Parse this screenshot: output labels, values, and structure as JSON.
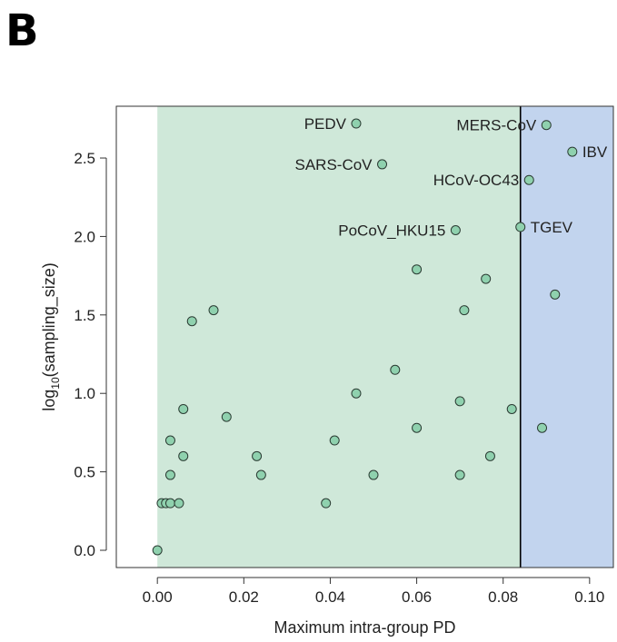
{
  "panel_label": "B",
  "colors": {
    "green_region": "#cfe8d9",
    "blue_region": "#c2d4ee",
    "point_fill": "#8fd1ae",
    "point_stroke": "#2b3b33",
    "threshold_line": "#000000"
  },
  "chart_data": {
    "type": "scatter",
    "xlabel": "Maximum intra-group PD",
    "ylabel": {
      "base": "log",
      "subscript": "10",
      "rest": "(sampling_size)"
    },
    "xlim": [
      -0.0095,
      0.1055
    ],
    "ylim": [
      -0.11,
      2.83
    ],
    "x_ticks": [
      0.0,
      0.02,
      0.04,
      0.06,
      0.08,
      0.1
    ],
    "x_tick_labels": [
      "0.00",
      "0.02",
      "0.04",
      "0.06",
      "0.08",
      "0.10"
    ],
    "y_ticks": [
      0.0,
      0.5,
      1.0,
      1.5,
      2.0,
      2.5
    ],
    "y_tick_labels": [
      "0.0",
      "0.5",
      "1.0",
      "1.5",
      "2.0",
      "2.5"
    ],
    "grid": false,
    "regions": [
      {
        "from": 0.0,
        "to": 0.084,
        "color": "green"
      },
      {
        "from": 0.084,
        "to": 0.1055,
        "color": "blue"
      }
    ],
    "threshold_x": 0.084,
    "labeled_points": [
      {
        "label": "PEDV",
        "x": 0.046,
        "y": 2.72,
        "side": "left"
      },
      {
        "label": "MERS-CoV",
        "x": 0.09,
        "y": 2.71,
        "side": "left"
      },
      {
        "label": "IBV",
        "x": 0.096,
        "y": 2.54,
        "side": "right"
      },
      {
        "label": "SARS-CoV",
        "x": 0.052,
        "y": 2.46,
        "side": "left"
      },
      {
        "label": "HCoV-OC43",
        "x": 0.086,
        "y": 2.36,
        "side": "left"
      },
      {
        "label": "PoCoV_HKU15",
        "x": 0.069,
        "y": 2.04,
        "side": "left"
      },
      {
        "label": "TGEV",
        "x": 0.084,
        "y": 2.06,
        "side": "right"
      }
    ],
    "points": [
      [
        0.0,
        0.0
      ],
      [
        0.001,
        0.3
      ],
      [
        0.002,
        0.3
      ],
      [
        0.003,
        0.3
      ],
      [
        0.005,
        0.3
      ],
      [
        0.003,
        0.48
      ],
      [
        0.003,
        0.7
      ],
      [
        0.006,
        0.6
      ],
      [
        0.006,
        0.9
      ],
      [
        0.008,
        1.46
      ],
      [
        0.013,
        1.53
      ],
      [
        0.016,
        0.85
      ],
      [
        0.023,
        0.6
      ],
      [
        0.024,
        0.48
      ],
      [
        0.039,
        0.3
      ],
      [
        0.041,
        0.7
      ],
      [
        0.046,
        1.0
      ],
      [
        0.05,
        0.48
      ],
      [
        0.055,
        1.15
      ],
      [
        0.06,
        0.78
      ],
      [
        0.06,
        1.79
      ],
      [
        0.07,
        0.48
      ],
      [
        0.07,
        0.95
      ],
      [
        0.071,
        1.53
      ],
      [
        0.076,
        1.73
      ],
      [
        0.077,
        0.6
      ],
      [
        0.082,
        0.9
      ],
      [
        0.089,
        0.78
      ],
      [
        0.092,
        1.63
      ]
    ]
  }
}
